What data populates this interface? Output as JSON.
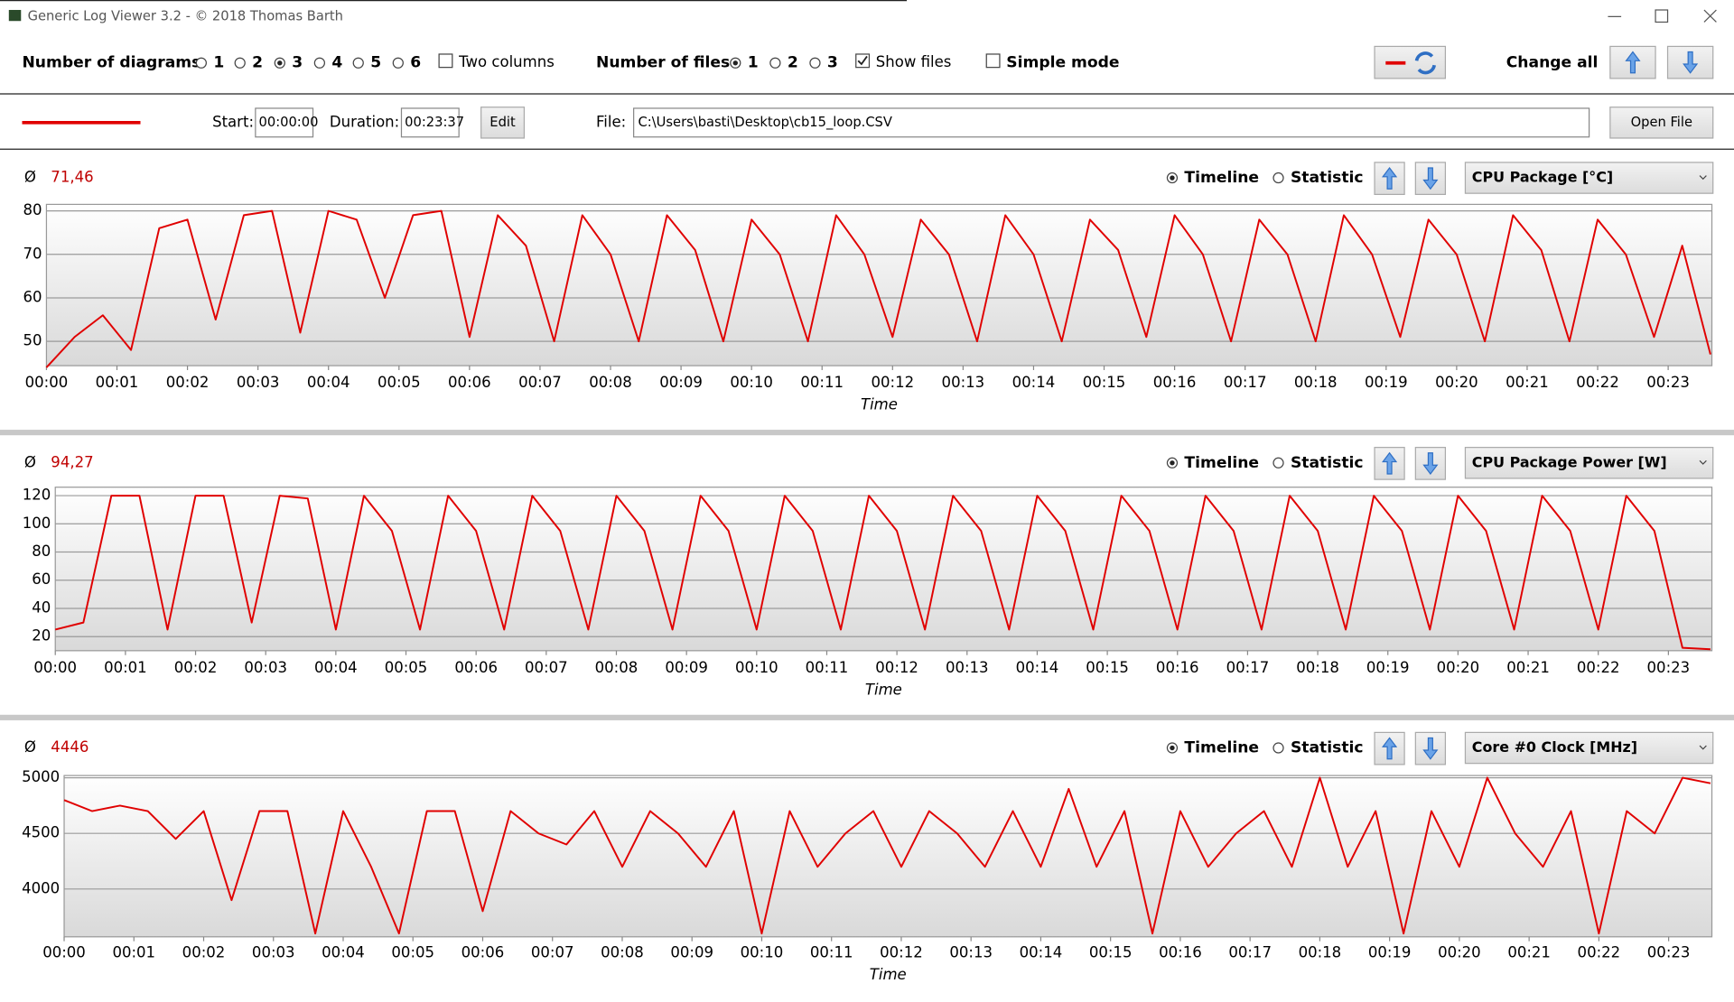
{
  "window": {
    "title": "Generic Log Viewer 3.2 - © 2018 Thomas Barth"
  },
  "toolbar": {
    "diagrams_label": "Number of diagrams",
    "diagram_options": [
      "1",
      "2",
      "3",
      "4",
      "5",
      "6"
    ],
    "diagrams_selected": 2,
    "two_columns": "Two columns",
    "files_label": "Number of files",
    "file_options": [
      "1",
      "2",
      "3"
    ],
    "files_selected": 0,
    "show_files": "Show files",
    "simple_mode": "Simple mode",
    "change_all": "Change all"
  },
  "file_bar": {
    "start_label": "Start:",
    "start": "00:00:00",
    "duration_label": "Duration:",
    "duration": "00:23:37",
    "edit": "Edit",
    "file_label": "File:",
    "file": "C:\\Users\\basti\\Desktop\\cb15_loop.CSV",
    "open": "Open File"
  },
  "chart_data": [
    {
      "type": "line",
      "avg_symbol": "Ø",
      "average": "71,46",
      "timeline": "Timeline",
      "statistic": "Statistic",
      "sensor": "CPU Package [°C]",
      "xlabel": "Time",
      "color": "#e00000",
      "grid": true,
      "xlim": [
        0,
        23.62
      ],
      "xticks": [
        {
          "value": 0,
          "label": "00:00"
        },
        {
          "value": 1,
          "label": "00:01"
        },
        {
          "value": 2,
          "label": "00:02"
        },
        {
          "value": 3,
          "label": "00:03"
        },
        {
          "value": 4,
          "label": "00:04"
        },
        {
          "value": 5,
          "label": "00:05"
        },
        {
          "value": 6,
          "label": "00:06"
        },
        {
          "value": 7,
          "label": "00:07"
        },
        {
          "value": 8,
          "label": "00:08"
        },
        {
          "value": 9,
          "label": "00:09"
        },
        {
          "value": 10,
          "label": "00:10"
        },
        {
          "value": 11,
          "label": "00:11"
        },
        {
          "value": 12,
          "label": "00:12"
        },
        {
          "value": 13,
          "label": "00:13"
        },
        {
          "value": 14,
          "label": "00:14"
        },
        {
          "value": 15,
          "label": "00:15"
        },
        {
          "value": 16,
          "label": "00:16"
        },
        {
          "value": 17,
          "label": "00:17"
        },
        {
          "value": 18,
          "label": "00:18"
        },
        {
          "value": 19,
          "label": "00:19"
        },
        {
          "value": 20,
          "label": "00:20"
        },
        {
          "value": 21,
          "label": "00:21"
        },
        {
          "value": 22,
          "label": "00:22"
        },
        {
          "value": 23,
          "label": "00:23"
        }
      ],
      "ylim": [
        44.4,
        81.5
      ],
      "yticks": [
        50,
        60,
        70,
        80
      ],
      "x": [
        0,
        0.4,
        0.8,
        1.2,
        1.6,
        2,
        2.4,
        2.8,
        3.2,
        3.6,
        4,
        4.4,
        4.8,
        5.2,
        5.6,
        6,
        6.4,
        6.8,
        7.2,
        7.6,
        8,
        8.4,
        8.8,
        9.2,
        9.6,
        10,
        10.4,
        10.8,
        11.2,
        11.6,
        12,
        12.4,
        12.8,
        13.2,
        13.6,
        14,
        14.4,
        14.8,
        15.2,
        15.6,
        16,
        16.4,
        16.8,
        17.2,
        17.6,
        18,
        18.4,
        18.8,
        19.2,
        19.6,
        20,
        20.4,
        20.8,
        21.2,
        21.6,
        22,
        22.4,
        22.8,
        23.2,
        23.6
      ],
      "values": [
        44,
        51,
        56,
        48,
        76,
        78,
        55,
        79,
        80,
        52,
        80,
        78,
        60,
        79,
        80,
        51,
        79,
        72,
        50,
        79,
        70,
        50,
        79,
        71,
        50,
        78,
        70,
        50,
        79,
        70,
        51,
        78,
        70,
        50,
        79,
        70,
        50,
        78,
        71,
        51,
        79,
        70,
        50,
        78,
        70,
        50,
        79,
        70,
        51,
        78,
        70,
        50,
        79,
        71,
        50,
        78,
        70,
        51,
        72,
        47
      ]
    },
    {
      "type": "line",
      "avg_symbol": "Ø",
      "average": "94,27",
      "timeline": "Timeline",
      "statistic": "Statistic",
      "sensor": "CPU Package Power [W]",
      "xlabel": "Time",
      "color": "#e00000",
      "grid": true,
      "xlim": [
        0,
        23.62
      ],
      "xticks": [
        {
          "value": 0,
          "label": "00:00"
        },
        {
          "value": 1,
          "label": "00:01"
        },
        {
          "value": 2,
          "label": "00:02"
        },
        {
          "value": 3,
          "label": "00:03"
        },
        {
          "value": 4,
          "label": "00:04"
        },
        {
          "value": 5,
          "label": "00:05"
        },
        {
          "value": 6,
          "label": "00:06"
        },
        {
          "value": 7,
          "label": "00:07"
        },
        {
          "value": 8,
          "label": "00:08"
        },
        {
          "value": 9,
          "label": "00:09"
        },
        {
          "value": 10,
          "label": "00:10"
        },
        {
          "value": 11,
          "label": "00:11"
        },
        {
          "value": 12,
          "label": "00:12"
        },
        {
          "value": 13,
          "label": "00:13"
        },
        {
          "value": 14,
          "label": "00:14"
        },
        {
          "value": 15,
          "label": "00:15"
        },
        {
          "value": 16,
          "label": "00:16"
        },
        {
          "value": 17,
          "label": "00:17"
        },
        {
          "value": 18,
          "label": "00:18"
        },
        {
          "value": 19,
          "label": "00:19"
        },
        {
          "value": 20,
          "label": "00:20"
        },
        {
          "value": 21,
          "label": "00:21"
        },
        {
          "value": 22,
          "label": "00:22"
        },
        {
          "value": 23,
          "label": "00:23"
        }
      ],
      "ylim": [
        10,
        126
      ],
      "yticks": [
        20,
        40,
        60,
        80,
        100,
        120
      ],
      "x": [
        0,
        0.4,
        0.8,
        1.2,
        1.6,
        2,
        2.4,
        2.8,
        3.2,
        3.6,
        4,
        4.4,
        4.8,
        5.2,
        5.6,
        6,
        6.4,
        6.8,
        7.2,
        7.6,
        8,
        8.4,
        8.8,
        9.2,
        9.6,
        10,
        10.4,
        10.8,
        11.2,
        11.6,
        12,
        12.4,
        12.8,
        13.2,
        13.6,
        14,
        14.4,
        14.8,
        15.2,
        15.6,
        16,
        16.4,
        16.8,
        17.2,
        17.6,
        18,
        18.4,
        18.8,
        19.2,
        19.6,
        20,
        20.4,
        20.8,
        21.2,
        21.6,
        22,
        22.4,
        22.8,
        23.2,
        23.6
      ],
      "values": [
        25,
        30,
        120,
        120,
        25,
        120,
        120,
        30,
        120,
        118,
        25,
        120,
        95,
        25,
        120,
        95,
        25,
        120,
        95,
        25,
        120,
        95,
        25,
        120,
        95,
        25,
        120,
        95,
        25,
        120,
        95,
        25,
        120,
        95,
        25,
        120,
        95,
        25,
        120,
        95,
        25,
        120,
        95,
        25,
        120,
        95,
        25,
        120,
        95,
        25,
        120,
        95,
        25,
        120,
        95,
        25,
        120,
        95,
        12,
        11
      ]
    },
    {
      "type": "line",
      "avg_symbol": "Ø",
      "average": "4446",
      "timeline": "Timeline",
      "statistic": "Statistic",
      "sensor": "Core #0 Clock [MHz]",
      "xlabel": "Time",
      "color": "#e00000",
      "grid": true,
      "xlim": [
        0,
        23.62
      ],
      "xticks": [
        {
          "value": 0,
          "label": "00:00"
        },
        {
          "value": 1,
          "label": "00:01"
        },
        {
          "value": 2,
          "label": "00:02"
        },
        {
          "value": 3,
          "label": "00:03"
        },
        {
          "value": 4,
          "label": "00:04"
        },
        {
          "value": 5,
          "label": "00:05"
        },
        {
          "value": 6,
          "label": "00:06"
        },
        {
          "value": 7,
          "label": "00:07"
        },
        {
          "value": 8,
          "label": "00:08"
        },
        {
          "value": 9,
          "label": "00:09"
        },
        {
          "value": 10,
          "label": "00:10"
        },
        {
          "value": 11,
          "label": "00:11"
        },
        {
          "value": 12,
          "label": "00:12"
        },
        {
          "value": 13,
          "label": "00:13"
        },
        {
          "value": 14,
          "label": "00:14"
        },
        {
          "value": 15,
          "label": "00:15"
        },
        {
          "value": 16,
          "label": "00:16"
        },
        {
          "value": 17,
          "label": "00:17"
        },
        {
          "value": 18,
          "label": "00:18"
        },
        {
          "value": 19,
          "label": "00:19"
        },
        {
          "value": 20,
          "label": "00:20"
        },
        {
          "value": 21,
          "label": "00:21"
        },
        {
          "value": 22,
          "label": "00:22"
        },
        {
          "value": 23,
          "label": "00:23"
        }
      ],
      "ylim": [
        3570,
        5020
      ],
      "yticks": [
        4000,
        4500,
        5000
      ],
      "x": [
        0,
        0.4,
        0.8,
        1.2,
        1.6,
        2,
        2.4,
        2.8,
        3.2,
        3.6,
        4,
        4.4,
        4.8,
        5.2,
        5.6,
        6,
        6.4,
        6.8,
        7.2,
        7.6,
        8,
        8.4,
        8.8,
        9.2,
        9.6,
        10,
        10.4,
        10.8,
        11.2,
        11.6,
        12,
        12.4,
        12.8,
        13.2,
        13.6,
        14,
        14.4,
        14.8,
        15.2,
        15.6,
        16,
        16.4,
        16.8,
        17.2,
        17.6,
        18,
        18.4,
        18.8,
        19.2,
        19.6,
        20,
        20.4,
        20.8,
        21.2,
        21.6,
        22,
        22.4,
        22.8,
        23.2,
        23.6
      ],
      "values": [
        4800,
        4700,
        4750,
        4700,
        4450,
        4700,
        3900,
        4700,
        4700,
        3600,
        4700,
        4200,
        3600,
        4700,
        4700,
        3800,
        4700,
        4500,
        4400,
        4700,
        4200,
        4700,
        4500,
        4200,
        4700,
        3600,
        4700,
        4200,
        4500,
        4700,
        4200,
        4700,
        4500,
        4200,
        4700,
        4200,
        4900,
        4200,
        4700,
        3600,
        4700,
        4200,
        4500,
        4700,
        4200,
        5000,
        4200,
        4700,
        3600,
        4700,
        4200,
        5000,
        4500,
        4200,
        4700,
        3600,
        4700,
        4500,
        5000,
        4950
      ]
    }
  ]
}
